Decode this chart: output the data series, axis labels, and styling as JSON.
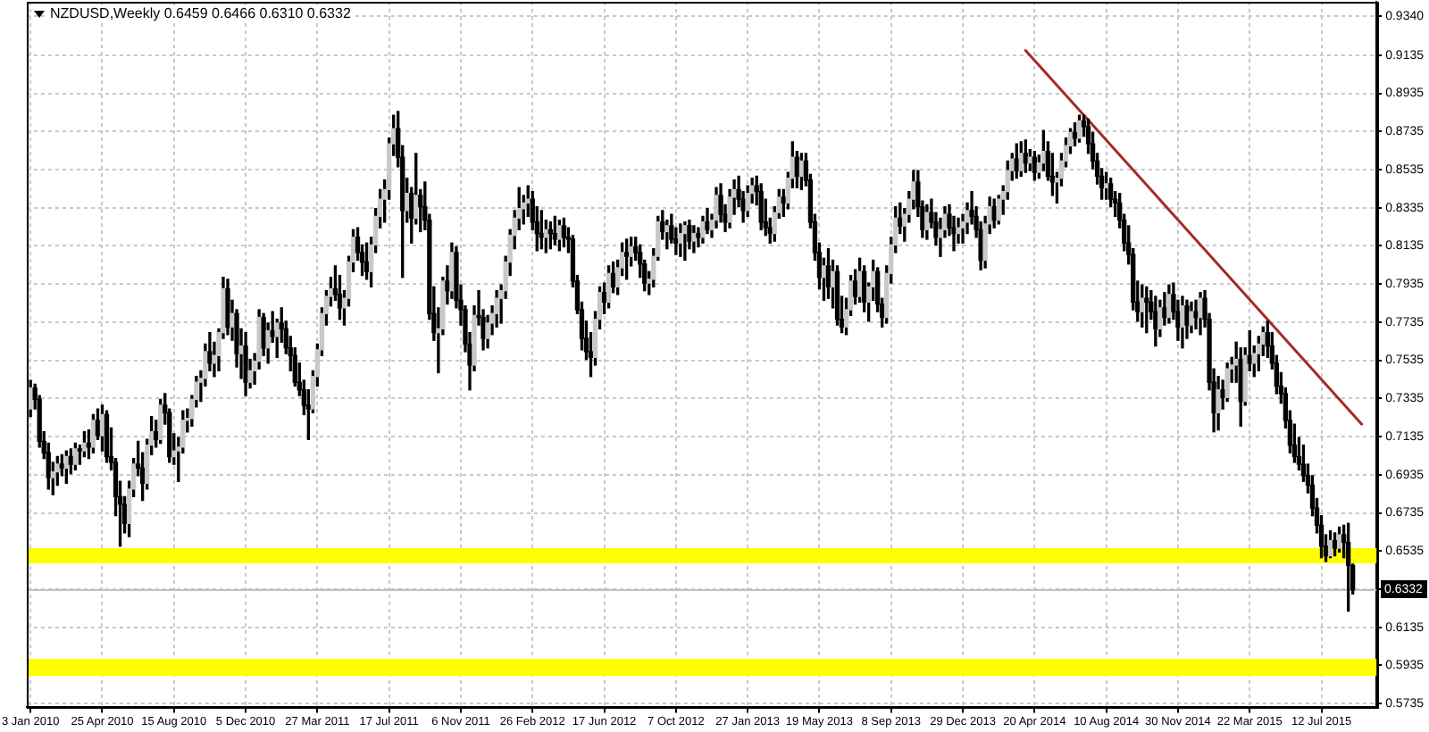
{
  "chart_data": {
    "type": "candlestick",
    "title": "NZDUSD,Weekly 0.6459 0.6466 0.6310 0.6332",
    "x": [
      "2010-01-03",
      "2010-01-10",
      "2010-01-17",
      "2010-01-24",
      "2010-01-31",
      "2010-02-07",
      "2010-02-14",
      "2010-02-21",
      "2010-02-28",
      "2010-03-07",
      "2010-03-14",
      "2010-03-21",
      "2010-03-28",
      "2010-04-04",
      "2010-04-11",
      "2010-04-18",
      "2010-04-25",
      "2010-05-02",
      "2010-05-09",
      "2010-05-16",
      "2010-05-23",
      "2010-05-30",
      "2010-06-06",
      "2010-06-13",
      "2010-06-20",
      "2010-06-27",
      "2010-07-04",
      "2010-07-11",
      "2010-07-18",
      "2010-07-25",
      "2010-08-01",
      "2010-08-08",
      "2010-08-15",
      "2010-08-22",
      "2010-08-29",
      "2010-09-05",
      "2010-09-12",
      "2010-09-19",
      "2010-09-26",
      "2010-10-03",
      "2010-10-10",
      "2010-10-17",
      "2010-10-24",
      "2010-10-31",
      "2010-11-07",
      "2010-11-14",
      "2010-11-21",
      "2010-11-28",
      "2010-12-05",
      "2010-12-12",
      "2010-12-19",
      "2010-12-26",
      "2011-01-02",
      "2011-01-09",
      "2011-01-16",
      "2011-01-23",
      "2011-01-30",
      "2011-02-06",
      "2011-02-13",
      "2011-02-20",
      "2011-02-27",
      "2011-03-06",
      "2011-03-13",
      "2011-03-20",
      "2011-03-27",
      "2011-04-03",
      "2011-04-10",
      "2011-04-17",
      "2011-04-24",
      "2011-05-01",
      "2011-05-08",
      "2011-05-15",
      "2011-05-22",
      "2011-05-29",
      "2011-06-05",
      "2011-06-12",
      "2011-06-19",
      "2011-06-26",
      "2011-07-03",
      "2011-07-10",
      "2011-07-17",
      "2011-07-24",
      "2011-07-31",
      "2011-08-07",
      "2011-08-14",
      "2011-08-21",
      "2011-08-28",
      "2011-09-04",
      "2011-09-11",
      "2011-09-18",
      "2011-09-25",
      "2011-10-02",
      "2011-10-09",
      "2011-10-16",
      "2011-10-23",
      "2011-10-30",
      "2011-11-06",
      "2011-11-13",
      "2011-11-20",
      "2011-11-27",
      "2011-12-04",
      "2011-12-11",
      "2011-12-18",
      "2011-12-25",
      "2012-01-01",
      "2012-01-08",
      "2012-01-15",
      "2012-01-22",
      "2012-01-29",
      "2012-02-05",
      "2012-02-12",
      "2012-02-19",
      "2012-02-26",
      "2012-03-04",
      "2012-03-11",
      "2012-03-18",
      "2012-03-25",
      "2012-04-01",
      "2012-04-08",
      "2012-04-15",
      "2012-04-22",
      "2012-04-29",
      "2012-05-06",
      "2012-05-13",
      "2012-05-20",
      "2012-05-27",
      "2012-06-03",
      "2012-06-10",
      "2012-06-17",
      "2012-06-24",
      "2012-07-01",
      "2012-07-08",
      "2012-07-15",
      "2012-07-22",
      "2012-07-29",
      "2012-08-05",
      "2012-08-12",
      "2012-08-19",
      "2012-08-26",
      "2012-09-02",
      "2012-09-09",
      "2012-09-16",
      "2012-09-23",
      "2012-09-30",
      "2012-10-07",
      "2012-10-14",
      "2012-10-21",
      "2012-10-28",
      "2012-11-04",
      "2012-11-11",
      "2012-11-18",
      "2012-11-25",
      "2012-12-02",
      "2012-12-09",
      "2012-12-16",
      "2012-12-23",
      "2012-12-30",
      "2013-01-06",
      "2013-01-13",
      "2013-01-20",
      "2013-01-27",
      "2013-02-03",
      "2013-02-10",
      "2013-02-17",
      "2013-02-24",
      "2013-03-03",
      "2013-03-10",
      "2013-03-17",
      "2013-03-24",
      "2013-03-31",
      "2013-04-07",
      "2013-04-14",
      "2013-04-21",
      "2013-04-28",
      "2013-05-05",
      "2013-05-12",
      "2013-05-19",
      "2013-05-26",
      "2013-06-02",
      "2013-06-09",
      "2013-06-16",
      "2013-06-23",
      "2013-06-30",
      "2013-07-07",
      "2013-07-14",
      "2013-07-21",
      "2013-07-28",
      "2013-08-04",
      "2013-08-11",
      "2013-08-18",
      "2013-08-25",
      "2013-09-01",
      "2013-09-08",
      "2013-09-15",
      "2013-09-22",
      "2013-09-29",
      "2013-10-06",
      "2013-10-13",
      "2013-10-20",
      "2013-10-27",
      "2013-11-03",
      "2013-11-10",
      "2013-11-17",
      "2013-11-24",
      "2013-12-01",
      "2013-12-08",
      "2013-12-15",
      "2013-12-22",
      "2013-12-29",
      "2014-01-05",
      "2014-01-12",
      "2014-01-19",
      "2014-01-26",
      "2014-02-02",
      "2014-02-09",
      "2014-02-16",
      "2014-02-23",
      "2014-03-02",
      "2014-03-09",
      "2014-03-16",
      "2014-03-23",
      "2014-03-30",
      "2014-04-06",
      "2014-04-13",
      "2014-04-20",
      "2014-04-27",
      "2014-05-04",
      "2014-05-11",
      "2014-05-18",
      "2014-05-25",
      "2014-06-01",
      "2014-06-08",
      "2014-06-15",
      "2014-06-22",
      "2014-06-29",
      "2014-07-06",
      "2014-07-13",
      "2014-07-20",
      "2014-07-27",
      "2014-08-03",
      "2014-08-10",
      "2014-08-17",
      "2014-08-24",
      "2014-08-31",
      "2014-09-07",
      "2014-09-14",
      "2014-09-21",
      "2014-09-28",
      "2014-10-05",
      "2014-10-12",
      "2014-10-19",
      "2014-10-26",
      "2014-11-02",
      "2014-11-09",
      "2014-11-16",
      "2014-11-23",
      "2014-11-30",
      "2014-12-07",
      "2014-12-14",
      "2014-12-21",
      "2014-12-28",
      "2015-01-04",
      "2015-01-11",
      "2015-01-18",
      "2015-01-25",
      "2015-02-01",
      "2015-02-08",
      "2015-02-15",
      "2015-02-22",
      "2015-03-01",
      "2015-03-08",
      "2015-03-15",
      "2015-03-22",
      "2015-03-29",
      "2015-04-05",
      "2015-04-12",
      "2015-04-19",
      "2015-04-26",
      "2015-05-03",
      "2015-05-10",
      "2015-05-17",
      "2015-05-24",
      "2015-05-31",
      "2015-06-07",
      "2015-06-14",
      "2015-06-21",
      "2015-06-28",
      "2015-07-05",
      "2015-07-12",
      "2015-07-19",
      "2015-07-26",
      "2015-08-02",
      "2015-08-09",
      "2015-08-16",
      "2015-08-23",
      "2015-08-30"
    ],
    "ohlc": [
      [
        0.728,
        0.743,
        0.724,
        0.739
      ],
      [
        0.739,
        0.741,
        0.728,
        0.733
      ],
      [
        0.733,
        0.735,
        0.708,
        0.711
      ],
      [
        0.711,
        0.716,
        0.702,
        0.705
      ],
      [
        0.705,
        0.71,
        0.686,
        0.692
      ],
      [
        0.692,
        0.7,
        0.683,
        0.695
      ],
      [
        0.695,
        0.703,
        0.688,
        0.699
      ],
      [
        0.699,
        0.704,
        0.693,
        0.697
      ],
      [
        0.697,
        0.706,
        0.689,
        0.703
      ],
      [
        0.703,
        0.707,
        0.694,
        0.699
      ],
      [
        0.699,
        0.71,
        0.696,
        0.707
      ],
      [
        0.707,
        0.709,
        0.699,
        0.706
      ],
      [
        0.706,
        0.716,
        0.703,
        0.71
      ],
      [
        0.71,
        0.717,
        0.702,
        0.708
      ],
      [
        0.708,
        0.725,
        0.705,
        0.722
      ],
      [
        0.722,
        0.728,
        0.712,
        0.714
      ],
      [
        0.714,
        0.73,
        0.706,
        0.725
      ],
      [
        0.725,
        0.727,
        0.7,
        0.703
      ],
      [
        0.703,
        0.718,
        0.696,
        0.7
      ],
      [
        0.7,
        0.702,
        0.672,
        0.682
      ],
      [
        0.682,
        0.69,
        0.656,
        0.678
      ],
      [
        0.678,
        0.682,
        0.663,
        0.668
      ],
      [
        0.668,
        0.69,
        0.661,
        0.686
      ],
      [
        0.686,
        0.702,
        0.682,
        0.699
      ],
      [
        0.699,
        0.711,
        0.693,
        0.697
      ],
      [
        0.697,
        0.705,
        0.68,
        0.689
      ],
      [
        0.689,
        0.712,
        0.686,
        0.709
      ],
      [
        0.709,
        0.724,
        0.704,
        0.716
      ],
      [
        0.716,
        0.722,
        0.708,
        0.712
      ],
      [
        0.712,
        0.733,
        0.71,
        0.73
      ],
      [
        0.73,
        0.736,
        0.72,
        0.726
      ],
      [
        0.726,
        0.728,
        0.7,
        0.703
      ],
      [
        0.703,
        0.715,
        0.699,
        0.706
      ],
      [
        0.706,
        0.713,
        0.69,
        0.708
      ],
      [
        0.708,
        0.727,
        0.705,
        0.722
      ],
      [
        0.722,
        0.728,
        0.716,
        0.723
      ],
      [
        0.723,
        0.735,
        0.719,
        0.733
      ],
      [
        0.733,
        0.745,
        0.729,
        0.742
      ],
      [
        0.742,
        0.748,
        0.732,
        0.744
      ],
      [
        0.744,
        0.762,
        0.74,
        0.758
      ],
      [
        0.758,
        0.768,
        0.748,
        0.752
      ],
      [
        0.752,
        0.763,
        0.745,
        0.756
      ],
      [
        0.756,
        0.77,
        0.748,
        0.768
      ],
      [
        0.768,
        0.797,
        0.765,
        0.791
      ],
      [
        0.791,
        0.796,
        0.767,
        0.771
      ],
      [
        0.771,
        0.785,
        0.764,
        0.778
      ],
      [
        0.778,
        0.78,
        0.75,
        0.757
      ],
      [
        0.757,
        0.77,
        0.744,
        0.761
      ],
      [
        0.761,
        0.768,
        0.735,
        0.742
      ],
      [
        0.742,
        0.754,
        0.739,
        0.748
      ],
      [
        0.748,
        0.757,
        0.741,
        0.753
      ],
      [
        0.753,
        0.78,
        0.749,
        0.776
      ],
      [
        0.776,
        0.778,
        0.756,
        0.76
      ],
      [
        0.76,
        0.773,
        0.752,
        0.769
      ],
      [
        0.769,
        0.779,
        0.763,
        0.766
      ],
      [
        0.766,
        0.775,
        0.755,
        0.773
      ],
      [
        0.773,
        0.781,
        0.763,
        0.77
      ],
      [
        0.77,
        0.774,
        0.757,
        0.76
      ],
      [
        0.76,
        0.766,
        0.748,
        0.756
      ],
      [
        0.756,
        0.76,
        0.74,
        0.742
      ],
      [
        0.742,
        0.752,
        0.735,
        0.738
      ],
      [
        0.738,
        0.743,
        0.725,
        0.73
      ],
      [
        0.73,
        0.738,
        0.712,
        0.728
      ],
      [
        0.728,
        0.748,
        0.726,
        0.745
      ],
      [
        0.745,
        0.762,
        0.74,
        0.759
      ],
      [
        0.759,
        0.781,
        0.756,
        0.778
      ],
      [
        0.778,
        0.79,
        0.772,
        0.787
      ],
      [
        0.787,
        0.797,
        0.782,
        0.791
      ],
      [
        0.791,
        0.803,
        0.785,
        0.788
      ],
      [
        0.788,
        0.798,
        0.775,
        0.781
      ],
      [
        0.781,
        0.79,
        0.772,
        0.786
      ],
      [
        0.786,
        0.808,
        0.782,
        0.805
      ],
      [
        0.805,
        0.822,
        0.8,
        0.818
      ],
      [
        0.818,
        0.823,
        0.806,
        0.81
      ],
      [
        0.81,
        0.814,
        0.798,
        0.805
      ],
      [
        0.805,
        0.815,
        0.796,
        0.8
      ],
      [
        0.8,
        0.818,
        0.792,
        0.814
      ],
      [
        0.814,
        0.833,
        0.81,
        0.829
      ],
      [
        0.829,
        0.843,
        0.823,
        0.838
      ],
      [
        0.838,
        0.848,
        0.826,
        0.843
      ],
      [
        0.843,
        0.87,
        0.838,
        0.867
      ],
      [
        0.867,
        0.882,
        0.861,
        0.875
      ],
      [
        0.875,
        0.884,
        0.855,
        0.86
      ],
      [
        0.86,
        0.866,
        0.797,
        0.832
      ],
      [
        0.832,
        0.849,
        0.826,
        0.841
      ],
      [
        0.841,
        0.844,
        0.815,
        0.828
      ],
      [
        0.828,
        0.862,
        0.825,
        0.84
      ],
      [
        0.84,
        0.843,
        0.821,
        0.834
      ],
      [
        0.834,
        0.847,
        0.822,
        0.827
      ],
      [
        0.827,
        0.83,
        0.775,
        0.778
      ],
      [
        0.778,
        0.792,
        0.764,
        0.768
      ],
      [
        0.768,
        0.781,
        0.747,
        0.77
      ],
      [
        0.77,
        0.797,
        0.767,
        0.795
      ],
      [
        0.795,
        0.803,
        0.783,
        0.79
      ],
      [
        0.79,
        0.815,
        0.786,
        0.81
      ],
      [
        0.81,
        0.813,
        0.781,
        0.785
      ],
      [
        0.785,
        0.793,
        0.772,
        0.78
      ],
      [
        0.78,
        0.782,
        0.758,
        0.762
      ],
      [
        0.762,
        0.768,
        0.738,
        0.751
      ],
      [
        0.751,
        0.782,
        0.748,
        0.777
      ],
      [
        0.777,
        0.79,
        0.772,
        0.776
      ],
      [
        0.776,
        0.78,
        0.759,
        0.765
      ],
      [
        0.765,
        0.777,
        0.76,
        0.773
      ],
      [
        0.773,
        0.782,
        0.767,
        0.778
      ],
      [
        0.778,
        0.79,
        0.771,
        0.786
      ],
      [
        0.786,
        0.793,
        0.773,
        0.79
      ],
      [
        0.79,
        0.808,
        0.786,
        0.805
      ],
      [
        0.805,
        0.822,
        0.798,
        0.819
      ],
      [
        0.819,
        0.832,
        0.812,
        0.828
      ],
      [
        0.828,
        0.844,
        0.822,
        0.833
      ],
      [
        0.833,
        0.84,
        0.825,
        0.836
      ],
      [
        0.836,
        0.845,
        0.829,
        0.838
      ],
      [
        0.838,
        0.842,
        0.822,
        0.826
      ],
      [
        0.826,
        0.834,
        0.811,
        0.82
      ],
      [
        0.82,
        0.832,
        0.812,
        0.818
      ],
      [
        0.818,
        0.827,
        0.81,
        0.822
      ],
      [
        0.822,
        0.826,
        0.812,
        0.82
      ],
      [
        0.82,
        0.829,
        0.814,
        0.817
      ],
      [
        0.817,
        0.827,
        0.811,
        0.824
      ],
      [
        0.824,
        0.828,
        0.813,
        0.818
      ],
      [
        0.818,
        0.823,
        0.81,
        0.817
      ],
      [
        0.817,
        0.819,
        0.792,
        0.795
      ],
      [
        0.795,
        0.798,
        0.778,
        0.78
      ],
      [
        0.78,
        0.784,
        0.759,
        0.765
      ],
      [
        0.765,
        0.774,
        0.754,
        0.758
      ],
      [
        0.758,
        0.768,
        0.745,
        0.755
      ],
      [
        0.755,
        0.779,
        0.751,
        0.775
      ],
      [
        0.775,
        0.792,
        0.77,
        0.789
      ],
      [
        0.789,
        0.794,
        0.778,
        0.784
      ],
      [
        0.784,
        0.803,
        0.781,
        0.799
      ],
      [
        0.799,
        0.805,
        0.789,
        0.792
      ],
      [
        0.792,
        0.806,
        0.788,
        0.802
      ],
      [
        0.802,
        0.815,
        0.798,
        0.81
      ],
      [
        0.81,
        0.817,
        0.796,
        0.808
      ],
      [
        0.808,
        0.818,
        0.803,
        0.813
      ],
      [
        0.813,
        0.818,
        0.806,
        0.81
      ],
      [
        0.81,
        0.814,
        0.797,
        0.804
      ],
      [
        0.804,
        0.806,
        0.79,
        0.794
      ],
      [
        0.794,
        0.8,
        0.788,
        0.796
      ],
      [
        0.796,
        0.812,
        0.792,
        0.808
      ],
      [
        0.808,
        0.829,
        0.806,
        0.826
      ],
      [
        0.826,
        0.832,
        0.817,
        0.821
      ],
      [
        0.821,
        0.827,
        0.812,
        0.824
      ],
      [
        0.824,
        0.83,
        0.815,
        0.817
      ],
      [
        0.817,
        0.823,
        0.809,
        0.815
      ],
      [
        0.815,
        0.825,
        0.808,
        0.82
      ],
      [
        0.82,
        0.826,
        0.806,
        0.824
      ],
      [
        0.824,
        0.827,
        0.812,
        0.816
      ],
      [
        0.816,
        0.824,
        0.81,
        0.82
      ],
      [
        0.82,
        0.823,
        0.813,
        0.818
      ],
      [
        0.818,
        0.829,
        0.815,
        0.826
      ],
      [
        0.826,
        0.833,
        0.82,
        0.822
      ],
      [
        0.822,
        0.83,
        0.818,
        0.827
      ],
      [
        0.827,
        0.844,
        0.823,
        0.84
      ],
      [
        0.84,
        0.846,
        0.826,
        0.83
      ],
      [
        0.83,
        0.835,
        0.821,
        0.826
      ],
      [
        0.826,
        0.843,
        0.823,
        0.839
      ],
      [
        0.839,
        0.848,
        0.83,
        0.843
      ],
      [
        0.843,
        0.85,
        0.834,
        0.838
      ],
      [
        0.838,
        0.842,
        0.826,
        0.832
      ],
      [
        0.832,
        0.845,
        0.829,
        0.841
      ],
      [
        0.841,
        0.849,
        0.836,
        0.845
      ],
      [
        0.845,
        0.85,
        0.835,
        0.842
      ],
      [
        0.842,
        0.846,
        0.822,
        0.826
      ],
      [
        0.826,
        0.838,
        0.819,
        0.823
      ],
      [
        0.823,
        0.828,
        0.815,
        0.82
      ],
      [
        0.82,
        0.834,
        0.816,
        0.831
      ],
      [
        0.831,
        0.843,
        0.828,
        0.839
      ],
      [
        0.839,
        0.843,
        0.829,
        0.836
      ],
      [
        0.836,
        0.852,
        0.833,
        0.849
      ],
      [
        0.849,
        0.868,
        0.844,
        0.86
      ],
      [
        0.86,
        0.863,
        0.844,
        0.85
      ],
      [
        0.85,
        0.862,
        0.843,
        0.858
      ],
      [
        0.858,
        0.862,
        0.845,
        0.848
      ],
      [
        0.848,
        0.851,
        0.823,
        0.826
      ],
      [
        0.826,
        0.83,
        0.806,
        0.81
      ],
      [
        0.81,
        0.815,
        0.791,
        0.797
      ],
      [
        0.797,
        0.807,
        0.785,
        0.803
      ],
      [
        0.803,
        0.812,
        0.786,
        0.792
      ],
      [
        0.792,
        0.806,
        0.781,
        0.8
      ],
      [
        0.8,
        0.803,
        0.772,
        0.775
      ],
      [
        0.775,
        0.787,
        0.768,
        0.771
      ],
      [
        0.771,
        0.786,
        0.767,
        0.78
      ],
      [
        0.78,
        0.798,
        0.777,
        0.795
      ],
      [
        0.795,
        0.801,
        0.783,
        0.787
      ],
      [
        0.787,
        0.807,
        0.784,
        0.8
      ],
      [
        0.8,
        0.803,
        0.779,
        0.784
      ],
      [
        0.784,
        0.794,
        0.774,
        0.792
      ],
      [
        0.792,
        0.806,
        0.785,
        0.8
      ],
      [
        0.8,
        0.802,
        0.779,
        0.783
      ],
      [
        0.783,
        0.786,
        0.771,
        0.776
      ],
      [
        0.776,
        0.803,
        0.773,
        0.799
      ],
      [
        0.799,
        0.818,
        0.794,
        0.814
      ],
      [
        0.814,
        0.834,
        0.81,
        0.828
      ],
      [
        0.828,
        0.836,
        0.82,
        0.824
      ],
      [
        0.824,
        0.833,
        0.816,
        0.83
      ],
      [
        0.83,
        0.842,
        0.826,
        0.838
      ],
      [
        0.838,
        0.853,
        0.833,
        0.847
      ],
      [
        0.847,
        0.853,
        0.829,
        0.834
      ],
      [
        0.834,
        0.837,
        0.818,
        0.822
      ],
      [
        0.822,
        0.835,
        0.817,
        0.831
      ],
      [
        0.831,
        0.838,
        0.823,
        0.826
      ],
      [
        0.826,
        0.831,
        0.814,
        0.818
      ],
      [
        0.818,
        0.828,
        0.808,
        0.822
      ],
      [
        0.822,
        0.834,
        0.818,
        0.83
      ],
      [
        0.83,
        0.835,
        0.819,
        0.823
      ],
      [
        0.823,
        0.829,
        0.811,
        0.82
      ],
      [
        0.82,
        0.828,
        0.815,
        0.823
      ],
      [
        0.823,
        0.83,
        0.815,
        0.826
      ],
      [
        0.826,
        0.836,
        0.82,
        0.832
      ],
      [
        0.832,
        0.842,
        0.825,
        0.829
      ],
      [
        0.829,
        0.834,
        0.818,
        0.822
      ],
      [
        0.822,
        0.826,
        0.801,
        0.806
      ],
      [
        0.806,
        0.829,
        0.802,
        0.825
      ],
      [
        0.825,
        0.839,
        0.82,
        0.834
      ],
      [
        0.834,
        0.838,
        0.823,
        0.827
      ],
      [
        0.827,
        0.84,
        0.825,
        0.838
      ],
      [
        0.838,
        0.845,
        0.83,
        0.842
      ],
      [
        0.842,
        0.858,
        0.838,
        0.853
      ],
      [
        0.853,
        0.862,
        0.848,
        0.859
      ],
      [
        0.859,
        0.867,
        0.849,
        0.853
      ],
      [
        0.853,
        0.868,
        0.85,
        0.862
      ],
      [
        0.862,
        0.869,
        0.852,
        0.857
      ],
      [
        0.857,
        0.864,
        0.853,
        0.86
      ],
      [
        0.86,
        0.863,
        0.848,
        0.852
      ],
      [
        0.852,
        0.861,
        0.849,
        0.857
      ],
      [
        0.857,
        0.874,
        0.853,
        0.863
      ],
      [
        0.863,
        0.868,
        0.848,
        0.85
      ],
      [
        0.85,
        0.862,
        0.84,
        0.847
      ],
      [
        0.847,
        0.852,
        0.836,
        0.849
      ],
      [
        0.849,
        0.862,
        0.845,
        0.858
      ],
      [
        0.858,
        0.87,
        0.855,
        0.866
      ],
      [
        0.866,
        0.875,
        0.862,
        0.873
      ],
      [
        0.873,
        0.878,
        0.866,
        0.87
      ],
      [
        0.87,
        0.882,
        0.868,
        0.879
      ],
      [
        0.879,
        0.882,
        0.871,
        0.876
      ],
      [
        0.876,
        0.88,
        0.862,
        0.867
      ],
      [
        0.867,
        0.873,
        0.854,
        0.858
      ],
      [
        0.858,
        0.862,
        0.846,
        0.85
      ],
      [
        0.85,
        0.854,
        0.838,
        0.844
      ],
      [
        0.844,
        0.852,
        0.838,
        0.846
      ],
      [
        0.846,
        0.849,
        0.834,
        0.838
      ],
      [
        0.838,
        0.842,
        0.829,
        0.836
      ],
      [
        0.836,
        0.841,
        0.823,
        0.827
      ],
      [
        0.827,
        0.83,
        0.811,
        0.815
      ],
      [
        0.815,
        0.824,
        0.804,
        0.809
      ],
      [
        0.809,
        0.812,
        0.78,
        0.784
      ],
      [
        0.784,
        0.795,
        0.774,
        0.779
      ],
      [
        0.779,
        0.793,
        0.771,
        0.786
      ],
      [
        0.786,
        0.792,
        0.768,
        0.784
      ],
      [
        0.784,
        0.79,
        0.775,
        0.779
      ],
      [
        0.779,
        0.787,
        0.761,
        0.77
      ],
      [
        0.77,
        0.785,
        0.766,
        0.781
      ],
      [
        0.781,
        0.789,
        0.772,
        0.776
      ],
      [
        0.776,
        0.793,
        0.773,
        0.788
      ],
      [
        0.788,
        0.794,
        0.775,
        0.779
      ],
      [
        0.779,
        0.785,
        0.764,
        0.771
      ],
      [
        0.771,
        0.787,
        0.76,
        0.782
      ],
      [
        0.782,
        0.785,
        0.765,
        0.772
      ],
      [
        0.772,
        0.784,
        0.768,
        0.779
      ],
      [
        0.779,
        0.785,
        0.77,
        0.776
      ],
      [
        0.776,
        0.789,
        0.767,
        0.786
      ],
      [
        0.786,
        0.79,
        0.771,
        0.775
      ],
      [
        0.775,
        0.778,
        0.738,
        0.742
      ],
      [
        0.742,
        0.749,
        0.716,
        0.726
      ],
      [
        0.726,
        0.745,
        0.717,
        0.738
      ],
      [
        0.738,
        0.743,
        0.728,
        0.734
      ],
      [
        0.734,
        0.752,
        0.732,
        0.749
      ],
      [
        0.749,
        0.755,
        0.742,
        0.751
      ],
      [
        0.751,
        0.763,
        0.742,
        0.754
      ],
      [
        0.754,
        0.76,
        0.719,
        0.732
      ],
      [
        0.732,
        0.76,
        0.73,
        0.756
      ],
      [
        0.756,
        0.769,
        0.748,
        0.752
      ],
      [
        0.752,
        0.761,
        0.745,
        0.757
      ],
      [
        0.757,
        0.766,
        0.748,
        0.762
      ],
      [
        0.762,
        0.771,
        0.756,
        0.768
      ],
      [
        0.768,
        0.774,
        0.755,
        0.761
      ],
      [
        0.761,
        0.768,
        0.749,
        0.752
      ],
      [
        0.752,
        0.756,
        0.736,
        0.74
      ],
      [
        0.74,
        0.747,
        0.731,
        0.736
      ],
      [
        0.736,
        0.739,
        0.718,
        0.722
      ],
      [
        0.722,
        0.727,
        0.705,
        0.709
      ],
      [
        0.709,
        0.72,
        0.7,
        0.703
      ],
      [
        0.703,
        0.713,
        0.696,
        0.699
      ],
      [
        0.699,
        0.709,
        0.69,
        0.693
      ],
      [
        0.693,
        0.699,
        0.684,
        0.688
      ],
      [
        0.688,
        0.693,
        0.672,
        0.676
      ],
      [
        0.676,
        0.681,
        0.663,
        0.667
      ],
      [
        0.667,
        0.672,
        0.65,
        0.656
      ],
      [
        0.656,
        0.662,
        0.648,
        0.651
      ],
      [
        0.651,
        0.664,
        0.65,
        0.659
      ],
      [
        0.659,
        0.663,
        0.651,
        0.655
      ],
      [
        0.655,
        0.666,
        0.653,
        0.662
      ],
      [
        0.662,
        0.667,
        0.65,
        0.658
      ],
      [
        0.658,
        0.668,
        0.622,
        0.646
      ],
      [
        0.6459,
        0.6466,
        0.631,
        0.6332
      ]
    ],
    "series": [
      {
        "type": "line",
        "x": [
          "2014-04-06",
          "2015-09-13"
        ],
        "values": [
          0.916,
          0.72
        ],
        "color": "#a52a2a"
      }
    ],
    "xlim": [
      "2009-12-28",
      "2015-10-06"
    ],
    "xticks": [
      {
        "value": "2010-01-03",
        "label": "3 Jan 2010"
      },
      {
        "value": "2010-04-25",
        "label": "25 Apr 2010"
      },
      {
        "value": "2010-08-15",
        "label": "15 Aug 2010"
      },
      {
        "value": "2010-12-05",
        "label": "5 Dec 2010"
      },
      {
        "value": "2011-03-27",
        "label": "27 Mar 2011"
      },
      {
        "value": "2011-07-17",
        "label": "17 Jul 2011"
      },
      {
        "value": "2011-11-06",
        "label": "6 Nov 2011"
      },
      {
        "value": "2012-02-26",
        "label": "26 Feb 2012"
      },
      {
        "value": "2012-06-17",
        "label": "17 Jun 2012"
      },
      {
        "value": "2012-10-07",
        "label": "7 Oct 2012"
      },
      {
        "value": "2013-01-27",
        "label": "27 Jan 2013"
      },
      {
        "value": "2013-05-19",
        "label": "19 May 2013"
      },
      {
        "value": "2013-09-08",
        "label": "8 Sep 2013"
      },
      {
        "value": "2013-12-29",
        "label": "29 Dec 2013"
      },
      {
        "value": "2014-04-20",
        "label": "20 Apr 2014"
      },
      {
        "value": "2014-08-10",
        "label": "10 Aug 2014"
      },
      {
        "value": "2014-11-30",
        "label": "30 Nov 2014"
      },
      {
        "value": "2015-03-22",
        "label": "22 Mar 2015"
      },
      {
        "value": "2015-07-12",
        "label": "12 Jul 2015"
      }
    ],
    "ylim": [
      0.5715,
      0.9415
    ],
    "yticks": [
      {
        "value": 0.934,
        "label": "0.9340"
      },
      0.9135,
      0.8935,
      0.8735,
      0.8535,
      0.8335,
      0.8135,
      0.7935,
      0.7735,
      0.7535,
      0.7335,
      0.7135,
      0.6935,
      0.6735,
      0.6535,
      {
        "value": 0.6335,
        "label": null
      },
      0.6135,
      0.5935,
      0.5735
    ],
    "grid": true,
    "bands": [
      {
        "axis": "y",
        "from": 0.647,
        "to": 0.655,
        "color": "#ffff00"
      },
      {
        "axis": "y",
        "from": 0.588,
        "to": 0.597,
        "color": "#ffff00"
      }
    ],
    "ref_lines": [
      {
        "axis": "y",
        "value": 0.6332,
        "label": "0.6332",
        "color": "#c0c0c0"
      }
    ]
  }
}
